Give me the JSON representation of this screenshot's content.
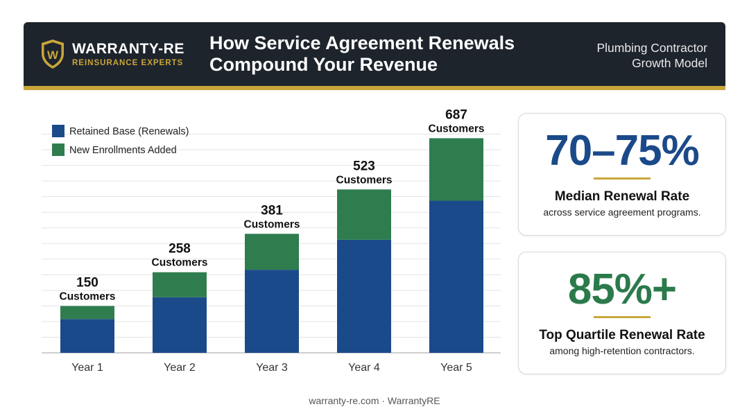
{
  "header": {
    "brand_name": "WARRANTY-RE",
    "brand_tagline": "REINSURANCE EXPERTS",
    "logo_letter": "W",
    "title_line1": "How Service Agreement Renewals",
    "title_line2": "Compound Your Revenue",
    "subtitle_line1": "Plumbing Contractor",
    "subtitle_line2": "Growth Model"
  },
  "colors": {
    "header_bg": "#1e242c",
    "gold": "#c9a63a",
    "retained_blue": "#1b4a8a",
    "new_green": "#2f7d4f"
  },
  "chart_data": {
    "type": "bar",
    "stacked": true,
    "categories": [
      "Year 1",
      "Year 2",
      "Year 3",
      "Year 4",
      "Year 5"
    ],
    "series": [
      {
        "name": "Retained Base (Renewals)",
        "color": "#1b4a8a",
        "values": [
          108,
          178,
          266,
          362,
          487
        ]
      },
      {
        "name": "New Enrollments Added",
        "color": "#2f7d4f",
        "values": [
          42,
          80,
          115,
          161,
          200
        ]
      }
    ],
    "totals": [
      150,
      258,
      381,
      523,
      687
    ],
    "total_labels": [
      "150",
      "258",
      "381",
      "523",
      "687"
    ],
    "total_unit": "Customers",
    "ylim": [
      0,
      730
    ],
    "grid": true,
    "legend_position": "top-left"
  },
  "stats": [
    {
      "value": "70–75%",
      "label": "Median Renewal Rate",
      "desc": "across service agreement programs."
    },
    {
      "value": "85%+",
      "label": "Top Quartile Renewal Rate",
      "desc": "among high-retention contractors."
    }
  ],
  "footer": {
    "text": "warranty-re.com · WarrantyRE"
  }
}
